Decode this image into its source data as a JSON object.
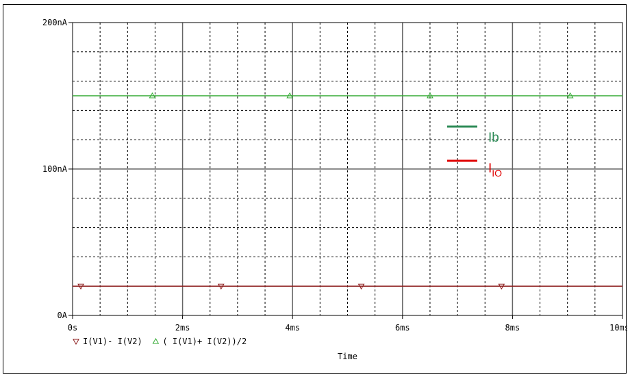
{
  "chart_data": {
    "type": "line",
    "xlabel": "Time",
    "ylabel": "",
    "xlim": [
      0,
      10
    ],
    "ylim": [
      0,
      200
    ],
    "x_unit": "ms",
    "y_unit": "nA",
    "grid": true,
    "x_ticks": [
      {
        "value": 0,
        "label": "0s"
      },
      {
        "value": 2,
        "label": "2ms"
      },
      {
        "value": 4,
        "label": "4ms"
      },
      {
        "value": 6,
        "label": "6ms"
      },
      {
        "value": 8,
        "label": "8ms"
      },
      {
        "value": 10,
        "label": "10ms"
      }
    ],
    "y_ticks": [
      {
        "value": 0,
        "label": "0A"
      },
      {
        "value": 100,
        "label": "100nA"
      },
      {
        "value": 200,
        "label": "200nA"
      }
    ],
    "series": [
      {
        "name": "I(V1)- I(V2)",
        "color": "#8b1a1a",
        "marker": "triangle-down",
        "x": [
          0,
          10
        ],
        "y": [
          20,
          20
        ],
        "marker_x": [
          0.15,
          2.7,
          5.25,
          7.8
        ]
      },
      {
        "name": "( I(V1)+ I(V2))/2",
        "color": "#33aa33",
        "marker": "triangle-up",
        "x": [
          0,
          10
        ],
        "y": [
          150,
          150
        ],
        "marker_x": [
          1.45,
          3.95,
          6.5,
          9.05
        ]
      }
    ],
    "legend": {
      "placement": "bottom-left"
    },
    "annotations": [
      {
        "text": "Ib",
        "sub": "",
        "color": "#2e8b57"
      },
      {
        "text": "I",
        "sub": "IO",
        "color": "#e00000"
      }
    ]
  }
}
